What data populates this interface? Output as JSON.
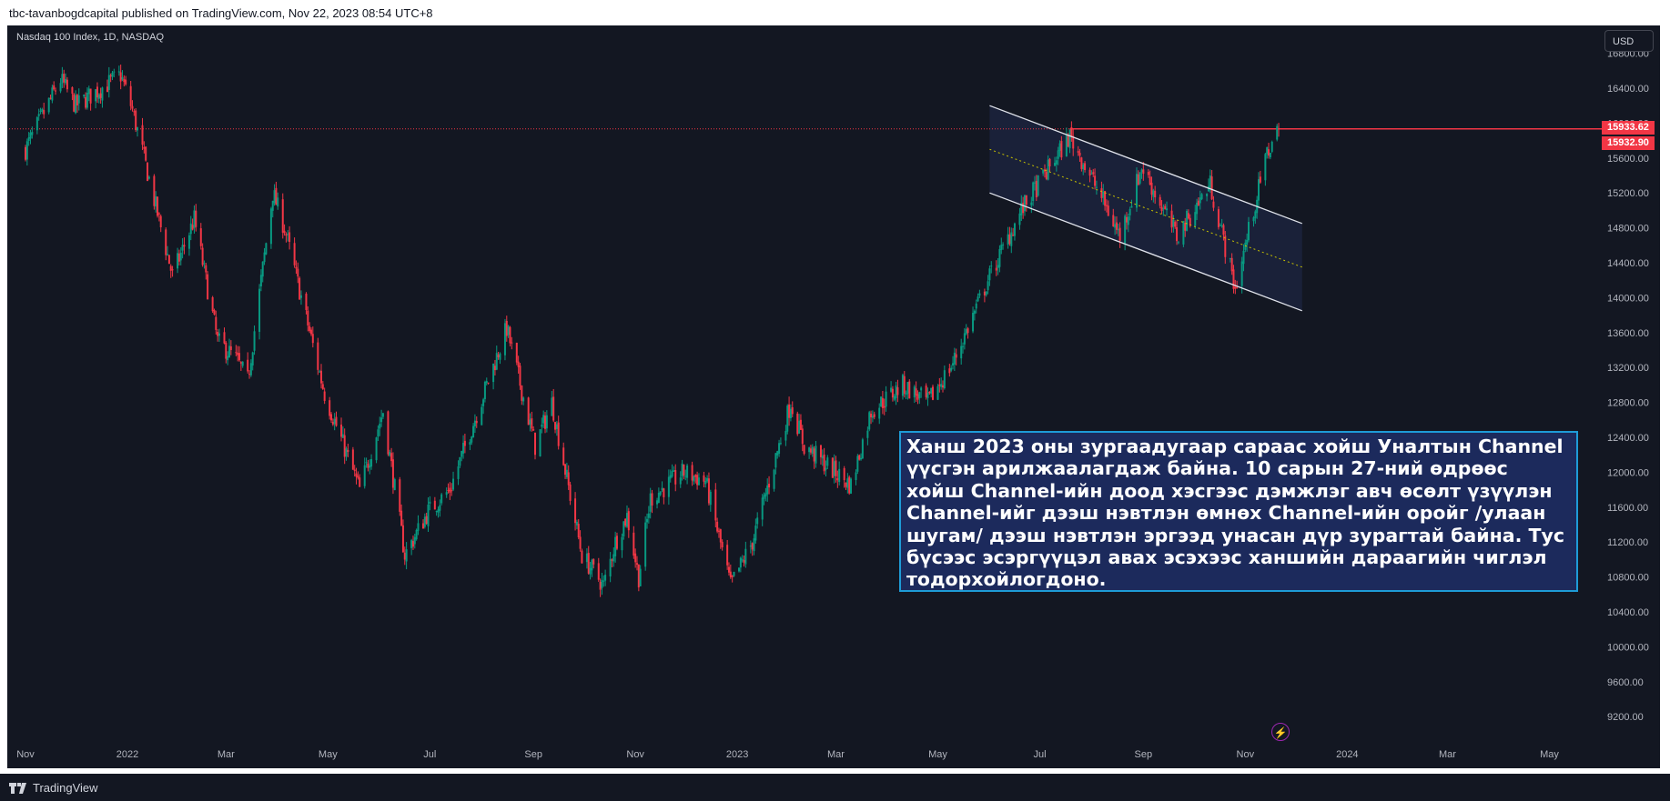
{
  "header": {
    "published": "tbc-tavanbogdcapital published on TradingView.com, Nov 22, 2023 08:54 UTC+8"
  },
  "symbol": {
    "title": "Nasdaq 100 Index, 1D, NASDAQ"
  },
  "currency": "USD",
  "price_tags": {
    "last": "15933.62",
    "close": "15932.90"
  },
  "note": {
    "text": "Ханш 2023 оны зургаадугаар сараас хойш Уналтын Channel үүсгэн арилжаалагдаж байна. 10 сарын 27-ний өдрөөс хойш Channel-ийн доод хэсгээс дэмжлэг авч өсөлт үзүүлэн Channel-ийг дээш нэвтлэн өмнөх Channel-ийн оройг /улаан шугам/ дээш нэвтлэн эргээд унасан дүр зурагтай байна. Тус бүсээс эсэргүүцэл авах эсэхээс ханшийн дараагийн чиглэл тодорхойлогдоно."
  },
  "footer": {
    "brand": "TradingView"
  },
  "icons": {
    "lightning": "lightning-icon",
    "logo": "tradingview-logo-icon"
  },
  "colors": {
    "up": "#089981",
    "down": "#f23645",
    "background": "#131722",
    "resistance": "#f23645",
    "channel": "#e0e3eb",
    "channel_mid": "#c8c200",
    "note_fill": "#1c2a5c",
    "note_border": "#1e9bd7"
  },
  "chart_data": {
    "type": "candlestick",
    "title": "Nasdaq 100 Index, 1D, NASDAQ",
    "y_ticks": [
      "9200.00",
      "9600.00",
      "10000.00",
      "10400.00",
      "10800.00",
      "11200.00",
      "11600.00",
      "12000.00",
      "12400.00",
      "12800.00",
      "13200.00",
      "13600.00",
      "14000.00",
      "14400.00",
      "14800.00",
      "15200.00",
      "15600.00",
      "16000.00",
      "16400.00",
      "16800.00"
    ],
    "x_ticks": [
      "Nov",
      "2022",
      "Mar",
      "May",
      "Jul",
      "Sep",
      "Nov",
      "2023",
      "Mar",
      "May",
      "Jul",
      "Sep",
      "Nov",
      "2024",
      "Mar",
      "May"
    ],
    "ylim": [
      9100,
      16900
    ],
    "resistance": 15933.62,
    "close_anchors": [
      [
        "2021-11-01",
        15700
      ],
      [
        "2021-11-22",
        16500
      ],
      [
        "2021-12-01",
        16200
      ],
      [
        "2021-12-28",
        16550
      ],
      [
        "2022-01-04",
        16150
      ],
      [
        "2022-01-28",
        14250
      ],
      [
        "2022-02-10",
        14900
      ],
      [
        "2022-02-24",
        13500
      ],
      [
        "2022-03-07",
        13300
      ],
      [
        "2022-03-14",
        13050
      ],
      [
        "2022-03-29",
        15200
      ],
      [
        "2022-04-05",
        14800
      ],
      [
        "2022-04-29",
        12900
      ],
      [
        "2022-05-20",
        11800
      ],
      [
        "2022-06-03",
        12700
      ],
      [
        "2022-06-16",
        11050
      ],
      [
        "2022-06-30",
        11550
      ],
      [
        "2022-07-13",
        11800
      ],
      [
        "2022-08-16",
        13650
      ],
      [
        "2022-09-02",
        12300
      ],
      [
        "2022-09-12",
        12800
      ],
      [
        "2022-09-30",
        11050
      ],
      [
        "2022-10-13",
        10700
      ],
      [
        "2022-10-20",
        11200
      ],
      [
        "2022-10-27",
        11500
      ],
      [
        "2022-11-03",
        10800
      ],
      [
        "2022-11-10",
        11700
      ],
      [
        "2022-11-30",
        12000
      ],
      [
        "2022-12-13",
        11900
      ],
      [
        "2022-12-28",
        10700
      ],
      [
        "2023-01-10",
        11200
      ],
      [
        "2023-02-02",
        12800
      ],
      [
        "2023-02-10",
        12300
      ],
      [
        "2023-03-10",
        11850
      ],
      [
        "2023-03-22",
        12700
      ],
      [
        "2023-04-10",
        13000
      ],
      [
        "2023-04-25",
        12800
      ],
      [
        "2023-05-10",
        13250
      ],
      [
        "2023-05-31",
        14200
      ],
      [
        "2023-06-20",
        15000
      ],
      [
        "2023-07-19",
        15850
      ],
      [
        "2023-08-07",
        15150
      ],
      [
        "2023-08-18",
        14700
      ],
      [
        "2023-08-31",
        15500
      ],
      [
        "2023-09-21",
        14700
      ],
      [
        "2023-10-11",
        15300
      ],
      [
        "2023-10-26",
        14100
      ],
      [
        "2023-11-01",
        14600
      ],
      [
        "2023-11-14",
        15650
      ],
      [
        "2023-11-21",
        15932.9
      ]
    ],
    "channel": {
      "upper": [
        [
          "2023-06-01",
          16200
        ],
        [
          "2023-12-05",
          14850
        ]
      ],
      "lower": [
        [
          "2023-06-01",
          15200
        ],
        [
          "2023-12-05",
          13850
        ]
      ],
      "mid": [
        [
          "2023-06-01",
          15700
        ],
        [
          "2023-12-05",
          14350
        ]
      ]
    }
  }
}
